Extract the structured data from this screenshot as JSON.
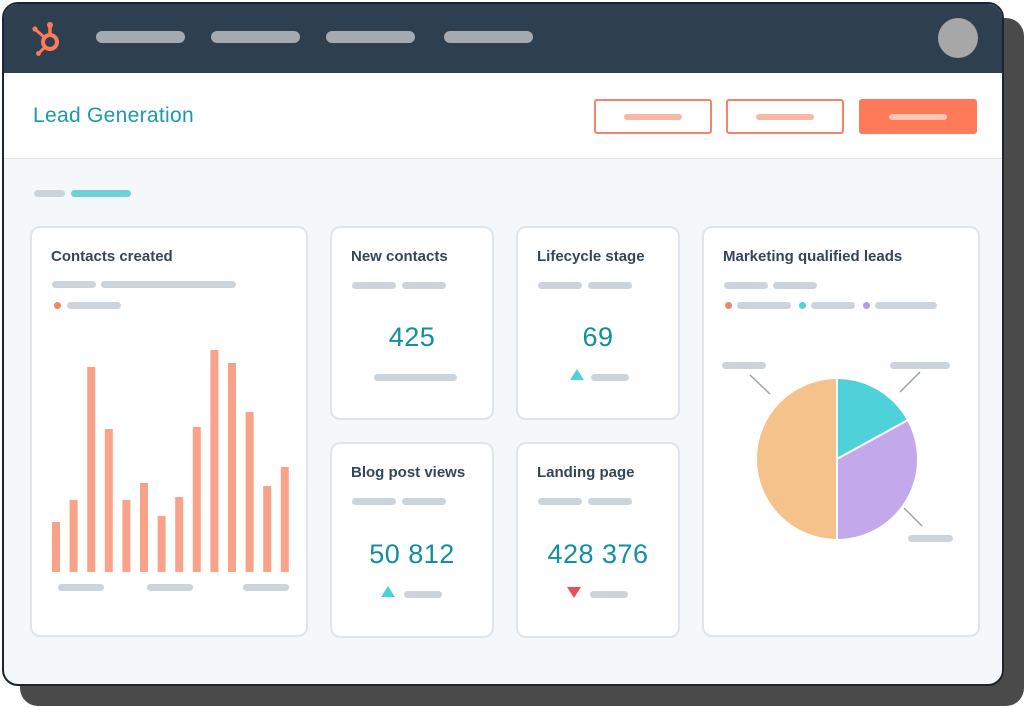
{
  "app": {
    "logo_icon": "hubspot-sprocket-icon",
    "accent_color": "#ff7a59",
    "brand_teal": "#1b9aaa"
  },
  "header": {
    "title": "Lead Generation"
  },
  "cards": {
    "contacts_created": {
      "title": "Contacts created",
      "legend_color": "#f2a08a"
    },
    "new_contacts": {
      "title": "New contacts",
      "value": "425"
    },
    "lifecycle_stage": {
      "title": "Lifecycle stage",
      "value": "69",
      "trend": "up"
    },
    "blog_post_views": {
      "title": "Blog post views",
      "value": "50 812",
      "trend": "up"
    },
    "landing_page": {
      "title": "Landing page",
      "value": "428 376",
      "trend": "down"
    },
    "marketing_qualified_leads": {
      "title": "Marketing qualified leads",
      "legend_colors": [
        "#f2846a",
        "#4fd1d9",
        "#b49ae8"
      ]
    }
  },
  "chart_data": [
    {
      "type": "bar",
      "values": [
        50,
        72,
        205,
        143,
        72,
        89,
        56,
        75,
        145,
        222,
        209,
        160,
        86,
        105
      ],
      "color": "#f9a28a",
      "ylim": [
        0,
        230
      ],
      "grid": false
    },
    {
      "type": "pie",
      "slices": [
        {
          "value": 50,
          "color": "#f5c28c"
        },
        {
          "value": 17,
          "color": "#4fd1d9"
        },
        {
          "value": 33,
          "color": "#c3a8ec"
        }
      ]
    }
  ]
}
